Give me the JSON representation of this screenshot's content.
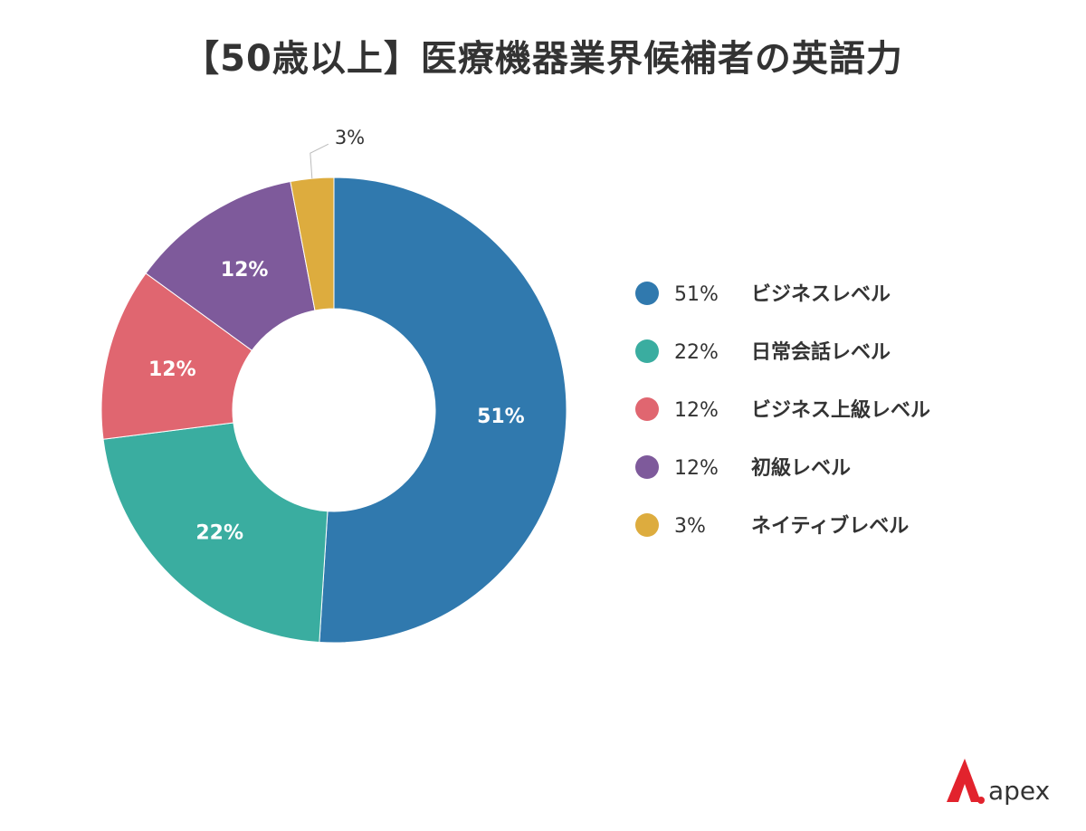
{
  "chart_data": {
    "type": "pie",
    "title": "【50歳以上】医療機器業界候補者の英語力",
    "donut": true,
    "slices": [
      {
        "label": "ビジネスレベル",
        "value": 51,
        "display": "51%",
        "color": "#3079ae"
      },
      {
        "label": "日常会話レベル",
        "value": 22,
        "display": "22%",
        "color": "#3aada0"
      },
      {
        "label": "ビジネス上級レベル",
        "value": 12,
        "display": "12%",
        "color": "#e06670"
      },
      {
        "label": "初級レベル",
        "value": 12,
        "display": "12%",
        "color": "#7e5a9b"
      },
      {
        "label": "ネイティブレベル",
        "value": 3,
        "display": "3%",
        "color": "#ddac3e"
      }
    ],
    "legend_position": "right"
  },
  "brand": {
    "name": "apex",
    "color": "#e2232d"
  }
}
